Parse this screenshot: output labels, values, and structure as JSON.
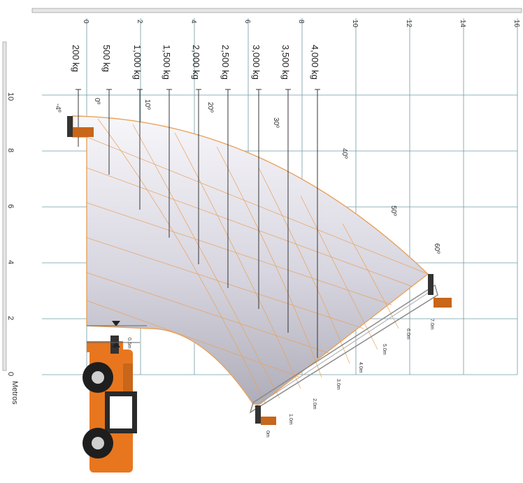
{
  "x_axis": {
    "ticks": [
      "0",
      "2",
      "4",
      "6",
      "8",
      "10",
      "12",
      "14",
      "16"
    ]
  },
  "y_axis": {
    "ticks": [
      "0",
      "2",
      "4",
      "6",
      "8",
      "10"
    ],
    "unit_label": "Metros"
  },
  "load_lines": [
    {
      "label": "200 kg"
    },
    {
      "label": "500 kg"
    },
    {
      "label": "1,000 kg"
    },
    {
      "label": "1,500 kg"
    },
    {
      "label": "2,000 kg"
    },
    {
      "label": "2,500 kg"
    },
    {
      "label": "3,000 kg"
    },
    {
      "label": "3,500 kg"
    },
    {
      "label": "4,000 kg"
    }
  ],
  "angles": [
    "-4º",
    "0º",
    "10º",
    "20º",
    "30º",
    "40º",
    "50º",
    "60º"
  ],
  "extensions": [
    "0m",
    "1.0m",
    "2.0m",
    "3.0m",
    "4.0m",
    "5.0m",
    "6.0m",
    "7.0m"
  ],
  "offset_label": "0.5m",
  "colors": {
    "envelope_line": "#e8a25c",
    "grid_line": "#6f9aa8",
    "boom": "#8a8a8a",
    "machine": "#e8761e",
    "carriage": "#c8661a"
  }
}
